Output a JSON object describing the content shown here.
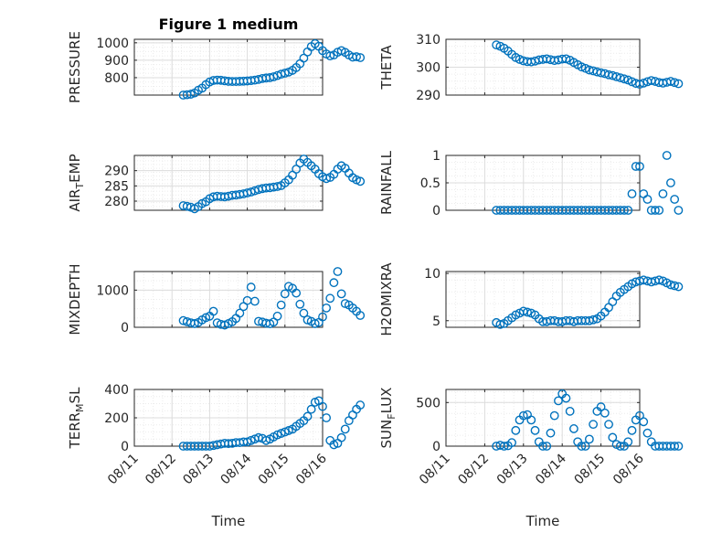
{
  "figure": {
    "title": "Figure 1 medium",
    "marker_color": "#0072BD",
    "xlabel": "Time"
  },
  "x_ticks": [
    "08/11",
    "08/12",
    "08/13",
    "08/14",
    "08/15",
    "08/16"
  ],
  "chart_data": [
    {
      "type": "scatter",
      "ylabel": "PRESSURE",
      "title": "Figure 1 medium",
      "ylim": [
        700,
        1020
      ],
      "yticks": [
        800,
        900,
        1000
      ],
      "xlim": [
        "08/11 00:00",
        "08/16 00:00"
      ],
      "grid": true,
      "x": [
        1.3,
        1.4,
        1.5,
        1.6,
        1.7,
        1.8,
        1.9,
        2.0,
        2.1,
        2.2,
        2.3,
        2.4,
        2.5,
        2.6,
        2.7,
        2.8,
        2.9,
        3.0,
        3.1,
        3.2,
        3.3,
        3.4,
        3.5,
        3.6,
        3.7,
        3.8,
        3.9,
        4.0,
        4.1,
        4.2,
        4.3,
        4.4,
        4.5,
        4.6,
        4.7,
        4.8,
        4.9,
        5.0,
        5.1,
        5.2,
        5.3,
        5.4,
        5.5,
        5.6,
        5.7,
        5.8,
        5.9,
        6.0
      ],
      "y": [
        700,
        702,
        705,
        712,
        728,
        740,
        760,
        775,
        784,
        786,
        785,
        782,
        779,
        778,
        778,
        779,
        780,
        781,
        783,
        786,
        790,
        795,
        798,
        800,
        805,
        812,
        820,
        826,
        832,
        842,
        858,
        880,
        912,
        948,
        978,
        995,
        980,
        955,
        936,
        925,
        930,
        946,
        955,
        945,
        930,
        918,
        920,
        915
      ]
    },
    {
      "type": "scatter",
      "ylabel": "THETA",
      "ylim": [
        290,
        310
      ],
      "yticks": [
        290,
        300,
        310
      ],
      "grid": true,
      "x": [
        1.3,
        1.4,
        1.5,
        1.6,
        1.7,
        1.8,
        1.9,
        2.0,
        2.1,
        2.2,
        2.3,
        2.4,
        2.5,
        2.6,
        2.7,
        2.8,
        2.9,
        3.0,
        3.1,
        3.2,
        3.3,
        3.4,
        3.5,
        3.6,
        3.7,
        3.8,
        3.9,
        4.0,
        4.1,
        4.2,
        4.3,
        4.4,
        4.5,
        4.6,
        4.7,
        4.8,
        4.9,
        5.0,
        5.1,
        5.2,
        5.3,
        5.4,
        5.5,
        5.6,
        5.7,
        5.8,
        5.9,
        6.0
      ],
      "y": [
        308,
        307.5,
        306.8,
        305.8,
        304.6,
        303.5,
        302.8,
        302.3,
        302,
        301.9,
        302.2,
        302.6,
        302.8,
        303,
        302.7,
        302.4,
        302.6,
        302.9,
        303,
        302.5,
        301.7,
        300.9,
        300.1,
        299.6,
        299,
        298.7,
        298.3,
        298,
        297.7,
        297.3,
        297,
        296.6,
        296.2,
        295.8,
        295.4,
        294.8,
        294.2,
        293.9,
        294.3,
        294.8,
        295.2,
        294.9,
        294.5,
        294.3,
        294.6,
        294.9,
        294.5,
        294.1
      ]
    },
    {
      "type": "scatter",
      "ylabel": "AIR_TEMP",
      "ylim": [
        277,
        295
      ],
      "yticks": [
        280,
        285,
        290
      ],
      "grid": true,
      "x": [
        1.3,
        1.4,
        1.5,
        1.6,
        1.7,
        1.8,
        1.9,
        2.0,
        2.1,
        2.2,
        2.3,
        2.4,
        2.5,
        2.6,
        2.7,
        2.8,
        2.9,
        3.0,
        3.1,
        3.2,
        3.3,
        3.4,
        3.5,
        3.6,
        3.7,
        3.8,
        3.9,
        4.0,
        4.1,
        4.2,
        4.3,
        4.4,
        4.5,
        4.6,
        4.7,
        4.8,
        4.9,
        5.0,
        5.1,
        5.2,
        5.3,
        5.4,
        5.5,
        5.6,
        5.7,
        5.8,
        5.9,
        6.0
      ],
      "y": [
        278.5,
        278.3,
        278,
        277.5,
        278.2,
        279.2,
        279.8,
        280.8,
        281.4,
        281.6,
        281.5,
        281.4,
        281.6,
        281.9,
        282,
        282.2,
        282.4,
        282.7,
        283,
        283.4,
        283.8,
        284.1,
        284.3,
        284.4,
        284.6,
        284.8,
        285.1,
        286,
        287,
        288.5,
        290.5,
        292.5,
        293.8,
        292.7,
        291.6,
        290.5,
        289,
        288,
        287.4,
        287.8,
        288.8,
        290.5,
        291.6,
        290.8,
        289.2,
        287.7,
        287,
        286.5
      ]
    },
    {
      "type": "scatter",
      "ylabel": "RAINFALL",
      "ylim": [
        0,
        1
      ],
      "yticks": [
        0,
        0.5,
        1
      ],
      "grid": true,
      "x": [
        1.3,
        1.4,
        1.5,
        1.6,
        1.7,
        1.8,
        1.9,
        2.0,
        2.1,
        2.2,
        2.3,
        2.4,
        2.5,
        2.6,
        2.7,
        2.8,
        2.9,
        3.0,
        3.1,
        3.2,
        3.3,
        3.4,
        3.5,
        3.6,
        3.7,
        3.8,
        3.9,
        4.0,
        4.1,
        4.2,
        4.3,
        4.4,
        4.5,
        4.6,
        4.7,
        4.8,
        4.9,
        5.0,
        5.1,
        5.2,
        5.3,
        5.4,
        5.5,
        5.6,
        5.7,
        5.8,
        5.9,
        6.0
      ],
      "y": [
        0,
        0,
        0,
        0,
        0,
        0,
        0,
        0,
        0,
        0,
        0,
        0,
        0,
        0,
        0,
        0,
        0,
        0,
        0,
        0,
        0,
        0,
        0,
        0,
        0,
        0,
        0,
        0,
        0,
        0,
        0,
        0,
        0,
        0,
        0,
        0.3,
        0.8,
        0.8,
        0.3,
        0.2,
        0,
        0,
        0,
        0.3,
        1,
        0.5,
        0.2,
        0
      ]
    },
    {
      "type": "scatter",
      "ylabel": "MIXDEPTH",
      "ylim": [
        0,
        1500
      ],
      "yticks": [
        0,
        1000
      ],
      "grid": true,
      "x": [
        1.3,
        1.4,
        1.5,
        1.6,
        1.7,
        1.8,
        1.9,
        2.0,
        2.1,
        2.2,
        2.3,
        2.4,
        2.5,
        2.6,
        2.7,
        2.8,
        2.9,
        3.0,
        3.1,
        3.2,
        3.3,
        3.4,
        3.5,
        3.6,
        3.7,
        3.8,
        3.9,
        4.0,
        4.1,
        4.2,
        4.3,
        4.4,
        4.5,
        4.6,
        4.7,
        4.8,
        4.9,
        5.0,
        5.1,
        5.2,
        5.3,
        5.4,
        5.5,
        5.6,
        5.7,
        5.8,
        5.9,
        6.0
      ],
      "y": [
        180,
        150,
        120,
        100,
        130,
        200,
        260,
        300,
        430,
        120,
        80,
        60,
        100,
        150,
        240,
        380,
        560,
        720,
        1080,
        700,
        160,
        140,
        110,
        95,
        140,
        300,
        600,
        900,
        1100,
        1050,
        920,
        620,
        380,
        200,
        160,
        100,
        130,
        280,
        520,
        780,
        1200,
        1500,
        900,
        640,
        600,
        520,
        430,
        320
      ]
    },
    {
      "type": "scatter",
      "ylabel": "H2OMIXRA",
      "ylim": [
        4.3,
        10.2
      ],
      "yticks": [
        5,
        10
      ],
      "grid": true,
      "x": [
        1.3,
        1.4,
        1.5,
        1.6,
        1.7,
        1.8,
        1.9,
        2.0,
        2.1,
        2.2,
        2.3,
        2.4,
        2.5,
        2.6,
        2.7,
        2.8,
        2.9,
        3.0,
        3.1,
        3.2,
        3.3,
        3.4,
        3.5,
        3.6,
        3.7,
        3.8,
        3.9,
        4.0,
        4.1,
        4.2,
        4.3,
        4.4,
        4.5,
        4.6,
        4.7,
        4.8,
        4.9,
        5.0,
        5.1,
        5.2,
        5.3,
        5.4,
        5.5,
        5.6,
        5.7,
        5.8,
        5.9,
        6.0
      ],
      "y": [
        4.8,
        4.6,
        4.7,
        5,
        5.3,
        5.6,
        5.8,
        6,
        5.9,
        5.8,
        5.6,
        5.2,
        4.9,
        4.9,
        5,
        5,
        4.9,
        4.9,
        5,
        5,
        4.9,
        5,
        5,
        5,
        5,
        5.1,
        5.2,
        5.5,
        5.9,
        6.4,
        7,
        7.6,
        8,
        8.3,
        8.6,
        8.9,
        9.1,
        9.2,
        9.3,
        9.2,
        9.1,
        9.2,
        9.3,
        9.2,
        9,
        8.8,
        8.7,
        8.6
      ]
    },
    {
      "type": "scatter",
      "ylabel": "TERR_MSL",
      "ylim": [
        0,
        400
      ],
      "yticks": [
        0,
        200,
        400
      ],
      "grid": true,
      "x": [
        1.3,
        1.4,
        1.5,
        1.6,
        1.7,
        1.8,
        1.9,
        2.0,
        2.1,
        2.2,
        2.3,
        2.4,
        2.5,
        2.6,
        2.7,
        2.8,
        2.9,
        3.0,
        3.1,
        3.2,
        3.3,
        3.4,
        3.5,
        3.6,
        3.7,
        3.8,
        3.9,
        4.0,
        4.1,
        4.2,
        4.3,
        4.4,
        4.5,
        4.6,
        4.7,
        4.8,
        4.9,
        5.0,
        5.1,
        5.2,
        5.3,
        5.4,
        5.5,
        5.6,
        5.7,
        5.8,
        5.9,
        6.0
      ],
      "y": [
        0,
        0,
        0,
        0,
        0,
        0,
        0,
        0,
        5,
        10,
        15,
        20,
        18,
        20,
        25,
        25,
        30,
        30,
        40,
        50,
        60,
        55,
        40,
        50,
        65,
        80,
        90,
        100,
        110,
        120,
        140,
        160,
        180,
        210,
        260,
        310,
        320,
        280,
        200,
        40,
        10,
        20,
        60,
        120,
        180,
        220,
        260,
        290
      ]
    },
    {
      "type": "scatter",
      "ylabel": "SUN_FLUX",
      "ylim": [
        0,
        650
      ],
      "yticks": [
        0,
        500
      ],
      "grid": true,
      "x": [
        1.3,
        1.4,
        1.5,
        1.6,
        1.7,
        1.8,
        1.9,
        2.0,
        2.1,
        2.2,
        2.3,
        2.4,
        2.5,
        2.6,
        2.7,
        2.8,
        2.9,
        3.0,
        3.1,
        3.2,
        3.3,
        3.4,
        3.5,
        3.6,
        3.7,
        3.8,
        3.9,
        4.0,
        4.1,
        4.2,
        4.3,
        4.4,
        4.5,
        4.6,
        4.7,
        4.8,
        4.9,
        5.0,
        5.1,
        5.2,
        5.3,
        5.4,
        5.5,
        5.6,
        5.7,
        5.8,
        5.9,
        6.0
      ],
      "y": [
        0,
        10,
        0,
        5,
        40,
        180,
        300,
        350,
        360,
        300,
        180,
        50,
        0,
        0,
        150,
        350,
        520,
        600,
        550,
        400,
        200,
        50,
        0,
        0,
        80,
        250,
        400,
        450,
        380,
        250,
        100,
        20,
        0,
        0,
        50,
        180,
        300,
        350,
        280,
        150,
        50,
        0,
        0,
        0,
        0,
        0,
        0,
        0
      ]
    }
  ]
}
